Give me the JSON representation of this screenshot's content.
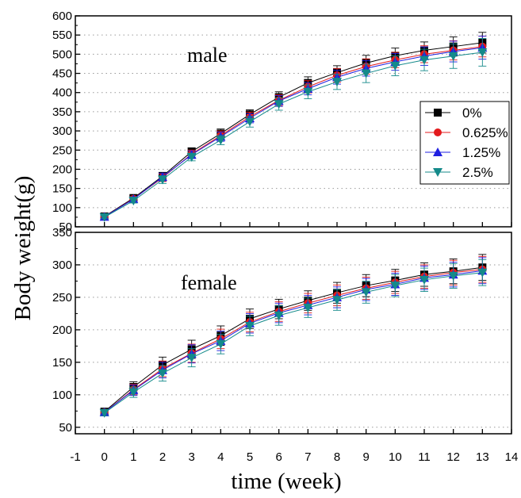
{
  "chart_data": {
    "type": "line",
    "ylabel": "Body weight(g)",
    "xlabel": "time (week)",
    "xlim": [
      -1,
      14
    ],
    "x_ticks": [
      -1,
      0,
      1,
      2,
      3,
      4,
      5,
      6,
      7,
      8,
      9,
      10,
      11,
      12,
      13,
      14
    ],
    "grid": "dotted horizontal",
    "legend": {
      "placement": "right (top panel)",
      "entries": [
        {
          "name": "0%",
          "color": "#000000",
          "marker": "square"
        },
        {
          "name": "0.625%",
          "color": "#e31a1c",
          "marker": "circle"
        },
        {
          "name": "1.25%",
          "color": "#1f1fe0",
          "marker": "triangle-up"
        },
        {
          "name": "2.5%",
          "color": "#148a8a",
          "marker": "triangle-down"
        }
      ]
    },
    "panels": [
      {
        "label": "male",
        "ylim": [
          50,
          600
        ],
        "y_ticks": [
          50,
          100,
          150,
          200,
          250,
          300,
          350,
          400,
          450,
          500,
          550,
          600
        ],
        "x": [
          0,
          1,
          2,
          3,
          4,
          5,
          6,
          7,
          8,
          9,
          10,
          11,
          12,
          13
        ],
        "series": [
          {
            "name": "0%",
            "values": [
              77,
              125,
              182,
              246,
              293,
              343,
              388,
              425,
              452,
              477,
              496,
              510,
              520,
              530
            ],
            "errors": [
              4,
              6,
              10,
              10,
              12,
              12,
              14,
              16,
              18,
              20,
              20,
              22,
              25,
              27
            ]
          },
          {
            "name": "0.625%",
            "values": [
              76,
              123,
              178,
              240,
              288,
              337,
              380,
              415,
              445,
              468,
              485,
              500,
              510,
              520
            ],
            "errors": [
              4,
              6,
              10,
              10,
              12,
              12,
              14,
              16,
              18,
              20,
              20,
              22,
              25,
              27
            ]
          },
          {
            "name": "1.25%",
            "values": [
              76,
              122,
              180,
              238,
              285,
              333,
              378,
              410,
              440,
              463,
              480,
              495,
              507,
              517
            ],
            "errors": [
              4,
              6,
              10,
              10,
              12,
              12,
              14,
              16,
              18,
              20,
              22,
              24,
              27,
              30
            ]
          },
          {
            "name": "2.5%",
            "values": [
              75,
              118,
              173,
              232,
              276,
              324,
              370,
              402,
              428,
              450,
              470,
              485,
              495,
              505
            ],
            "errors": [
              4,
              6,
              10,
              10,
              12,
              14,
              16,
              18,
              20,
              24,
              26,
              28,
              32,
              36
            ]
          }
        ]
      },
      {
        "label": "female",
        "ylim": [
          40,
          350
        ],
        "y_ticks": [
          50,
          100,
          150,
          200,
          250,
          300,
          350
        ],
        "x": [
          0,
          1,
          2,
          3,
          4,
          5,
          6,
          7,
          8,
          9,
          10,
          11,
          12,
          13
        ],
        "series": [
          {
            "name": "0%",
            "values": [
              74,
              112,
              146,
              170,
              191,
              217,
              232,
              245,
              257,
              268,
              276,
              285,
              290,
              296
            ],
            "errors": [
              4,
              8,
              12,
              14,
              15,
              15,
              15,
              15,
              16,
              17,
              17,
              18,
              19,
              20
            ]
          },
          {
            "name": "0.625%",
            "values": [
              73,
              108,
              140,
              164,
              186,
              212,
              228,
              241,
              253,
              264,
              273,
              282,
              288,
              293
            ],
            "errors": [
              4,
              8,
              12,
              14,
              15,
              15,
              15,
              15,
              16,
              17,
              17,
              18,
              19,
              20
            ]
          },
          {
            "name": "1.25%",
            "values": [
              73,
              107,
              138,
              163,
              183,
              210,
              226,
              238,
              250,
              262,
              270,
              280,
              285,
              291
            ],
            "errors": [
              4,
              8,
              12,
              14,
              15,
              15,
              15,
              15,
              16,
              17,
              17,
              18,
              19,
              20
            ]
          },
          {
            "name": "2.5%",
            "values": [
              72,
              104,
              133,
              157,
              178,
              206,
              222,
              234,
              246,
              258,
              268,
              277,
              283,
              288
            ],
            "errors": [
              4,
              8,
              12,
              14,
              15,
              15,
              15,
              15,
              16,
              17,
              17,
              18,
              19,
              20
            ]
          }
        ]
      }
    ]
  }
}
